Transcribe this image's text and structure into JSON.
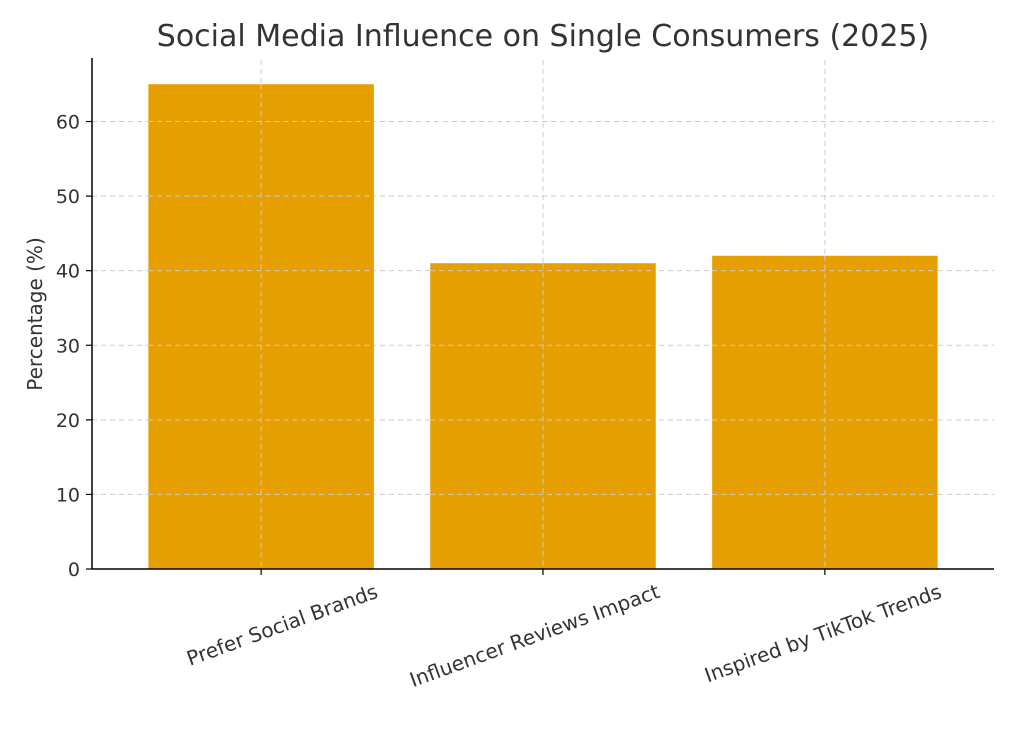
{
  "chart_data": {
    "type": "bar",
    "title": "Social Media Influence on Single Consumers (2025)",
    "xlabel": "",
    "ylabel": "Percentage (%)",
    "categories": [
      "Prefer Social Brands",
      "Influencer Reviews Impact",
      "Inspired by TikTok Trends"
    ],
    "values": [
      65,
      41,
      42
    ],
    "ylim": [
      0,
      68.25
    ],
    "yticks": [
      0,
      10,
      20,
      30,
      40,
      50,
      60
    ],
    "bar_color": "#E69F00",
    "grid": true,
    "legend": "none"
  }
}
